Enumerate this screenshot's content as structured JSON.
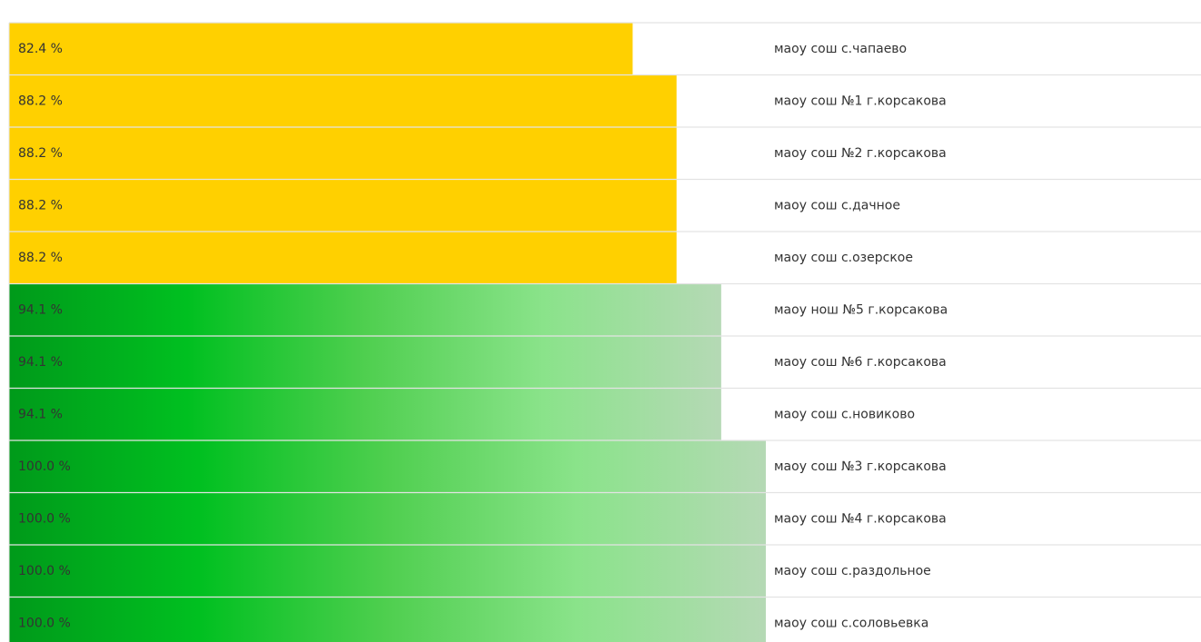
{
  "chart_data": {
    "type": "bar",
    "categories": [
      "маоу сош с.чапаево",
      "маоу сош №1 г.корсакова",
      "маоу сош №2 г.корсакова",
      "маоу сош с.дачное",
      "маоу сош с.озерское",
      "маоу нош №5 г.корсакова",
      "маоу сош №6 г.корсакова",
      "маоу сош с.новиково",
      "маоу сош №3 г.корсакова",
      "маоу сош №4 г.корсакова",
      "маоу сош с.раздольное",
      "маоу сош с.соловьевка"
    ],
    "values": [
      82.4,
      88.2,
      88.2,
      88.2,
      88.2,
      94.1,
      94.1,
      94.1,
      100.0,
      100.0,
      100.0,
      100.0
    ],
    "value_labels": [
      "82.4 %",
      "88.2 %",
      "88.2 %",
      "88.2 %",
      "88.2 %",
      "94.1 %",
      "94.1 %",
      "94.1 %",
      "100.0 %",
      "100.0 %",
      "100.0 %",
      "100.0 %"
    ],
    "colors": [
      "#ffd000",
      "#ffd000",
      "#ffd000",
      "#ffd000",
      "#ffd000",
      [
        "#009a1a",
        "#00c020",
        "#4fcf4f",
        "#8ae38a",
        "#b5d9b5"
      ],
      [
        "#009a1a",
        "#00c020",
        "#4fcf4f",
        "#8ae38a",
        "#b5d9b5"
      ],
      [
        "#009a1a",
        "#00c020",
        "#4fcf4f",
        "#8ae38a",
        "#b5d9b5"
      ],
      [
        "#009a1a",
        "#00c020",
        "#4fcf4f",
        "#8ae38a",
        "#b5d9b5"
      ],
      [
        "#009a1a",
        "#00c020",
        "#4fcf4f",
        "#8ae38a",
        "#b5d9b5"
      ],
      [
        "#009a1a",
        "#00c020",
        "#4fcf4f",
        "#8ae38a",
        "#b5d9b5"
      ],
      [
        "#009a1a",
        "#00c020",
        "#4fcf4f",
        "#8ae38a",
        "#b5d9b5"
      ]
    ],
    "xlim": [
      0,
      100
    ]
  }
}
